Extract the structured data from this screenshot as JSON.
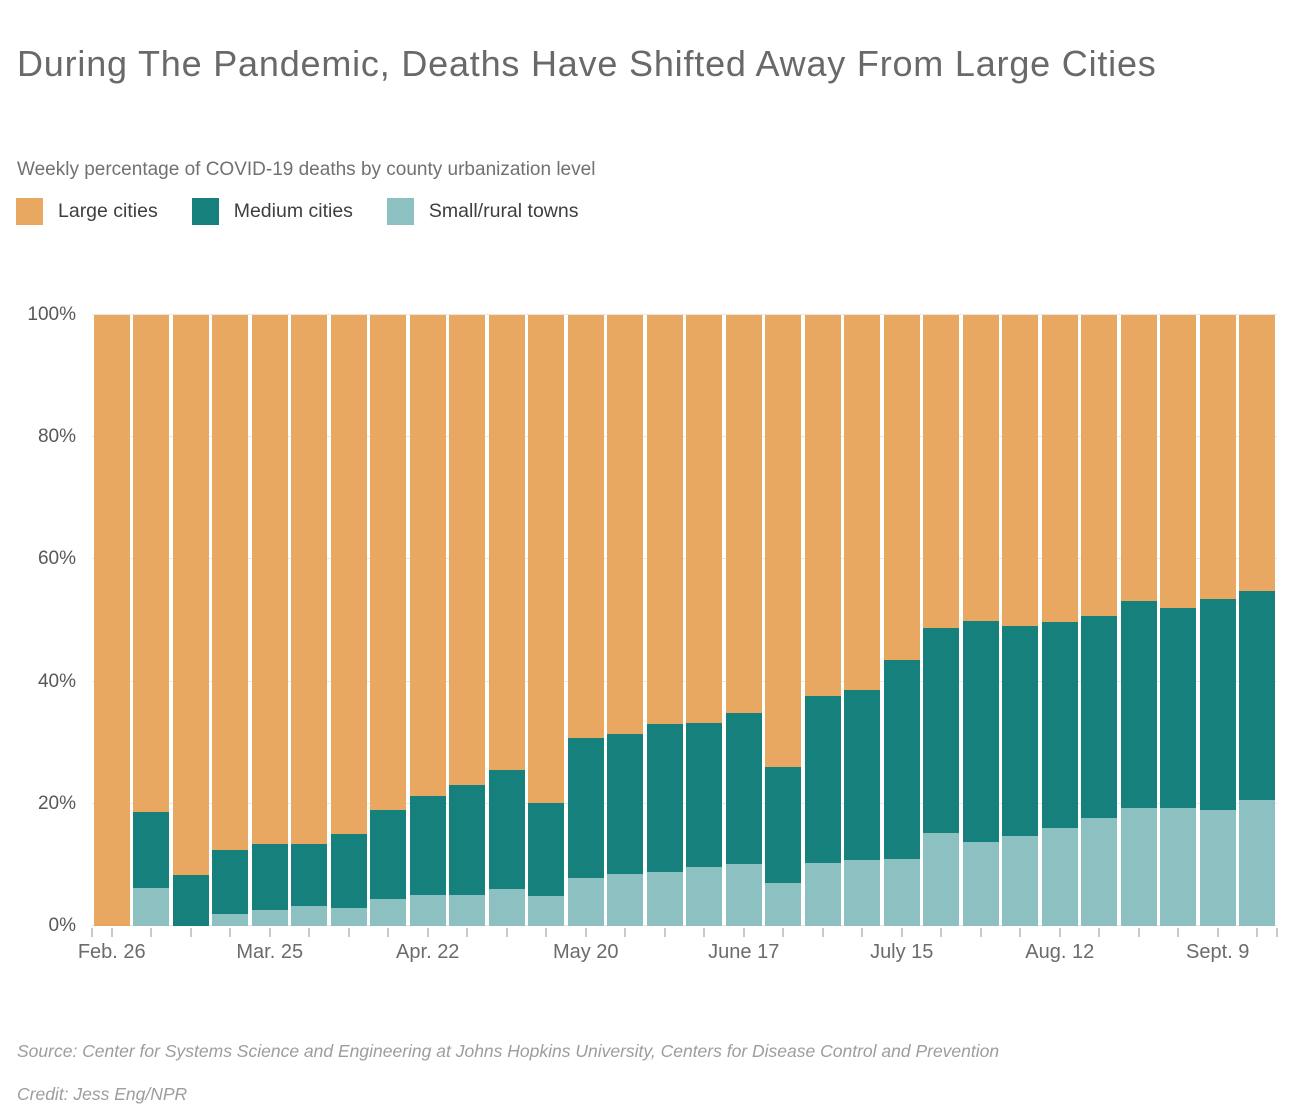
{
  "header": {
    "title": "During The Pandemic, Deaths Have Shifted Away From Large Cities",
    "subtitle": "Weekly percentage of COVID-19 deaths by county urbanization level"
  },
  "legend": {
    "items": [
      {
        "label": "Large cities",
        "color": "#E9A862"
      },
      {
        "label": "Medium cities",
        "color": "#16807C"
      },
      {
        "label": "Small/rural towns",
        "color": "#8CC0C1"
      }
    ]
  },
  "chart_data": {
    "type": "bar",
    "stacked": true,
    "normalized_percent": true,
    "title": "During The Pandemic, Deaths Have Shifted Away From Large Cities",
    "subtitle": "Weekly percentage of COVID-19 deaths by county urbanization level",
    "unit": "%",
    "num_bars": 30,
    "bar_interval": "weekly",
    "ylim": [
      0,
      100
    ],
    "grid": true,
    "legend_position": "top",
    "y_ticks": [
      0,
      20,
      40,
      60,
      80,
      100
    ],
    "y_tick_labels": [
      "0%",
      "20%",
      "40%",
      "60%",
      "80%",
      "100%"
    ],
    "x_tick_labels": [
      {
        "index": 0,
        "label": "Feb. 26"
      },
      {
        "index": 4,
        "label": "Mar. 25"
      },
      {
        "index": 8,
        "label": "Apr. 22"
      },
      {
        "index": 12,
        "label": "May 20"
      },
      {
        "index": 16,
        "label": "June 17"
      },
      {
        "index": 20,
        "label": "July 15"
      },
      {
        "index": 24,
        "label": "Aug. 12"
      },
      {
        "index": 28,
        "label": "Sept. 9"
      }
    ],
    "series": [
      {
        "name": "Small/rural towns",
        "color": "#8CC0C1",
        "values": [
          0,
          6.3,
          0,
          1.9,
          2.6,
          3.3,
          3.0,
          4.4,
          5.1,
          5.1,
          6.0,
          4.9,
          7.9,
          8.5,
          8.9,
          9.6,
          10.2,
          7.1,
          10.3,
          10.8,
          11.0,
          15.2,
          13.8,
          14.8,
          16.1,
          17.6,
          19.3,
          19.3,
          19.0,
          20.6
        ]
      },
      {
        "name": "Medium cities",
        "color": "#16807C",
        "values": [
          0,
          12.4,
          8.3,
          10.5,
          10.8,
          10.1,
          12.0,
          14.6,
          16.2,
          18.0,
          19.5,
          15.2,
          22.9,
          23.0,
          24.1,
          23.6,
          24.6,
          19.0,
          27.4,
          27.9,
          32.6,
          33.6,
          36.1,
          34.3,
          33.7,
          33.2,
          33.9,
          32.8,
          34.5,
          34.2
        ]
      },
      {
        "name": "Large cities",
        "color": "#E9A862",
        "values": [
          100,
          81.3,
          91.7,
          87.6,
          86.6,
          86.6,
          85.0,
          81.0,
          78.7,
          76.9,
          74.5,
          79.9,
          69.2,
          68.5,
          67.0,
          66.8,
          65.2,
          73.9,
          62.3,
          61.3,
          56.4,
          51.2,
          50.1,
          50.9,
          50.2,
          49.2,
          46.8,
          47.9,
          46.5,
          45.2
        ]
      }
    ]
  },
  "footer": {
    "source": "Source: Center for Systems Science and Engineering at Johns Hopkins University, Centers for Disease Control and Prevention",
    "credit": "Credit: Jess Eng/NPR"
  }
}
